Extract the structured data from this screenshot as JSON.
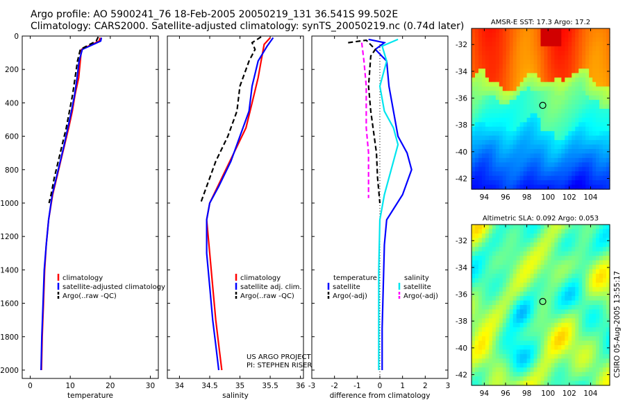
{
  "header": {
    "line1": "Argo profile: AO 5900241_76 18-Feb-2005 20050219_131 36.541S 99.502E",
    "line2": "Climatology: CARS2000. Satellite-adjusted climatology: synTS_20050219.nc (0.74d later)"
  },
  "side_stamp": "CSIRO 05-Aug-2005 13:55:17",
  "colors": {
    "climatology": "#ff0000",
    "satellite": "#0000ff",
    "argo": "#000000",
    "salinity_satellite": "#00e5ee",
    "salinity_argo": "#ff00ff"
  },
  "chart_data": [
    {
      "type": "line",
      "xlabel": "temperature",
      "ylabel": "",
      "xlim": [
        -2,
        32
      ],
      "ylim": [
        2050,
        0
      ],
      "xticks": [
        "0",
        "10",
        "20",
        "30"
      ],
      "yticks": [
        "0",
        "200",
        "400",
        "600",
        "800",
        "1000",
        "1200",
        "1400",
        "1600",
        "1800",
        "2000"
      ],
      "series": [
        {
          "name": "climatology",
          "color": "#ff0000",
          "points": [
            [
              17.5,
              10
            ],
            [
              17.2,
              30
            ],
            [
              12.8,
              80
            ],
            [
              12.5,
              150
            ],
            [
              12.1,
              250
            ],
            [
              11.2,
              350
            ],
            [
              10.5,
              450
            ],
            [
              9.6,
              550
            ],
            [
              8.6,
              650
            ],
            [
              7.6,
              750
            ],
            [
              6.6,
              850
            ],
            [
              5.6,
              950
            ],
            [
              4.6,
              1100
            ],
            [
              4.0,
              1250
            ],
            [
              3.6,
              1400
            ],
            [
              3.3,
              1600
            ],
            [
              3.0,
              1800
            ],
            [
              2.8,
              2000
            ]
          ]
        },
        {
          "name": "satellite-adjusted climatology",
          "color": "#0000ff",
          "points": [
            [
              17.8,
              10
            ],
            [
              17.6,
              30
            ],
            [
              13.0,
              80
            ],
            [
              12.2,
              150
            ],
            [
              11.7,
              250
            ],
            [
              11.1,
              350
            ],
            [
              10.3,
              450
            ],
            [
              9.4,
              550
            ],
            [
              8.5,
              650
            ],
            [
              7.5,
              750
            ],
            [
              6.5,
              850
            ],
            [
              5.5,
              950
            ],
            [
              4.6,
              1100
            ],
            [
              4.0,
              1250
            ],
            [
              3.5,
              1400
            ],
            [
              3.2,
              1600
            ],
            [
              2.9,
              1800
            ],
            [
              2.7,
              2000
            ]
          ]
        },
        {
          "name": "Argo(..raw -QC)",
          "color": "#000000",
          "dashed": true,
          "points": [
            [
              17.0,
              5
            ],
            [
              16.5,
              30
            ],
            [
              12.5,
              80
            ],
            [
              11.8,
              150
            ],
            [
              11.2,
              250
            ],
            [
              10.6,
              350
            ],
            [
              9.8,
              450
            ],
            [
              9.0,
              550
            ],
            [
              8.0,
              650
            ],
            [
              7.0,
              750
            ],
            [
              6.0,
              850
            ],
            [
              5.2,
              950
            ],
            [
              4.7,
              1000
            ]
          ]
        }
      ],
      "legend": [
        "climatology",
        "satellite-adjusted climatology",
        "Argo(..raw -QC)"
      ],
      "legend_position": "bottom-right"
    },
    {
      "type": "line",
      "xlabel": "salinity",
      "xlim": [
        33.8,
        36.05
      ],
      "ylim": [
        2050,
        0
      ],
      "xticks": [
        "34",
        "34.5",
        "35",
        "35.5",
        "36"
      ],
      "series": [
        {
          "name": "climatology",
          "color": "#ff0000",
          "points": [
            [
              35.5,
              10
            ],
            [
              35.4,
              50
            ],
            [
              35.35,
              150
            ],
            [
              35.3,
              250
            ],
            [
              35.2,
              400
            ],
            [
              35.1,
              550
            ],
            [
              34.9,
              700
            ],
            [
              34.7,
              850
            ],
            [
              34.5,
              1000
            ],
            [
              34.45,
              1100
            ],
            [
              34.5,
              1300
            ],
            [
              34.55,
              1500
            ],
            [
              34.6,
              1700
            ],
            [
              34.65,
              1850
            ],
            [
              34.7,
              2000
            ]
          ]
        },
        {
          "name": "satellite adj. clim.",
          "color": "#0000ff",
          "points": [
            [
              35.55,
              10
            ],
            [
              35.45,
              60
            ],
            [
              35.3,
              150
            ],
            [
              35.2,
              300
            ],
            [
              35.15,
              450
            ],
            [
              35.0,
              600
            ],
            [
              34.85,
              750
            ],
            [
              34.65,
              900
            ],
            [
              34.5,
              1000
            ],
            [
              34.45,
              1100
            ],
            [
              34.45,
              1300
            ],
            [
              34.5,
              1500
            ],
            [
              34.55,
              1700
            ],
            [
              34.6,
              1850
            ],
            [
              34.65,
              2000
            ]
          ]
        },
        {
          "name": "Argo(..raw -QC)",
          "color": "#000000",
          "dashed": true,
          "points": [
            [
              35.35,
              5
            ],
            [
              35.2,
              40
            ],
            [
              35.25,
              80
            ],
            [
              35.15,
              150
            ],
            [
              35.0,
              300
            ],
            [
              34.95,
              450
            ],
            [
              34.8,
              600
            ],
            [
              34.6,
              750
            ],
            [
              34.45,
              900
            ],
            [
              34.35,
              1000
            ]
          ]
        }
      ],
      "legend": [
        "climatology",
        "satellite adj. clim.",
        "Argo(..raw -QC)"
      ],
      "legend_position": "bottom-right",
      "annotation": [
        "US ARGO PROJECT",
        "PI: STEPHEN RISER"
      ]
    },
    {
      "type": "line",
      "xlabel": "difference from climatology",
      "xlim": [
        -3,
        3
      ],
      "ylim": [
        2050,
        0
      ],
      "xticks": [
        "-3",
        "-2",
        "-1",
        "0",
        "1",
        "2",
        "3"
      ],
      "series": [
        {
          "name": "temperature satellite",
          "color": "#0000ff",
          "points": [
            [
              -0.5,
              20
            ],
            [
              0.2,
              40
            ],
            [
              -0.2,
              80
            ],
            [
              0.3,
              150
            ],
            [
              0.4,
              300
            ],
            [
              0.6,
              450
            ],
            [
              0.8,
              600
            ],
            [
              1.2,
              700
            ],
            [
              1.4,
              800
            ],
            [
              1.0,
              950
            ],
            [
              0.3,
              1100
            ],
            [
              0.2,
              1250
            ],
            [
              0.15,
              1500
            ],
            [
              0.1,
              1750
            ],
            [
              0.1,
              2000
            ]
          ]
        },
        {
          "name": "temperature Argo(-adj)",
          "color": "#000000",
          "dashed": true,
          "points": [
            [
              -1.4,
              40
            ],
            [
              -0.6,
              25
            ],
            [
              -0.2,
              80
            ],
            [
              -0.4,
              120
            ],
            [
              -0.5,
              300
            ],
            [
              -0.4,
              450
            ],
            [
              -0.3,
              550
            ],
            [
              -0.15,
              700
            ],
            [
              -0.1,
              850
            ],
            [
              0.0,
              1000
            ]
          ]
        },
        {
          "name": "salinity satellite",
          "color": "#00e5ee",
          "points": [
            [
              0.8,
              20
            ],
            [
              0.1,
              60
            ],
            [
              0.3,
              150
            ],
            [
              0.0,
              300
            ],
            [
              0.2,
              450
            ],
            [
              0.6,
              550
            ],
            [
              0.8,
              650
            ],
            [
              0.5,
              800
            ],
            [
              0.2,
              950
            ],
            [
              0.0,
              1100
            ],
            [
              -0.05,
              1400
            ],
            [
              -0.05,
              1700
            ],
            [
              -0.05,
              2000
            ]
          ]
        },
        {
          "name": "salinity Argo(-adj)",
          "color": "#ff00ff",
          "dashed": true,
          "points": [
            [
              -0.8,
              40
            ],
            [
              -0.7,
              150
            ],
            [
              -0.6,
              300
            ],
            [
              -0.6,
              550
            ],
            [
              -0.5,
              700
            ],
            [
              -0.5,
              850
            ],
            [
              -0.5,
              970
            ]
          ]
        }
      ],
      "legend_headers": [
        "temperature",
        "salinity"
      ],
      "legend": [
        "satellite",
        "Argo(-adj)",
        "satellite",
        "Argo(-adj)"
      ],
      "legend_position": "bottom"
    },
    {
      "type": "heatmap",
      "title": "AMSR-E SST: 17.3 Argo: 17.2",
      "xticks": [
        "94",
        "96",
        "98",
        "100",
        "102",
        "104"
      ],
      "yticks": [
        "-32",
        "-34",
        "-36",
        "-38",
        "-40",
        "-42"
      ],
      "xlim": [
        92.8,
        105.8
      ],
      "ylim": [
        -42.8,
        -30.8
      ],
      "marker": {
        "lon": 99.5,
        "lat": -36.541
      },
      "colormap": "jet"
    },
    {
      "type": "heatmap",
      "title": "Altimetric SLA: 0.092 Argo: 0.053",
      "xticks": [
        "94",
        "96",
        "98",
        "100",
        "102",
        "104"
      ],
      "yticks": [
        "-32",
        "-34",
        "-36",
        "-38",
        "-40",
        "-42"
      ],
      "xlim": [
        92.8,
        105.8
      ],
      "ylim": [
        -42.8,
        -30.8
      ],
      "marker": {
        "lon": 99.5,
        "lat": -36.541
      },
      "colormap": "jet"
    }
  ]
}
